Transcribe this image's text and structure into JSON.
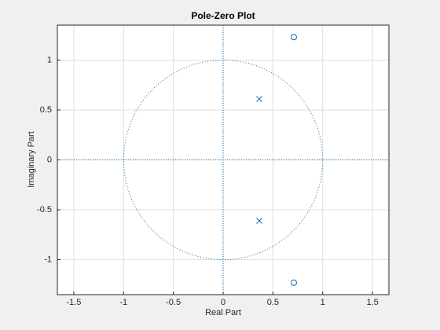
{
  "chart_data": {
    "type": "pole-zero",
    "title": "Pole-Zero Plot",
    "x_label": "Real Part",
    "y_label": "Imaginary Part",
    "xlim": [
      -1.665,
      1.665
    ],
    "ylim": [
      -1.35,
      1.35
    ],
    "xticks": [
      -1.5,
      -1,
      -0.5,
      0,
      0.5,
      1,
      1.5
    ],
    "yticks": [
      -1,
      -0.5,
      0,
      0.5,
      1
    ],
    "grid": true,
    "unit_circle": true,
    "series": [
      {
        "marker": "o",
        "color": "#0072bd",
        "x": [
          0.71,
          0.71
        ],
        "values": [
          1.23,
          -1.23
        ]
      },
      {
        "marker": "x",
        "color": "#0072bd",
        "x": [
          0.363,
          0.363
        ],
        "values": [
          0.61,
          -0.61
        ]
      }
    ]
  }
}
